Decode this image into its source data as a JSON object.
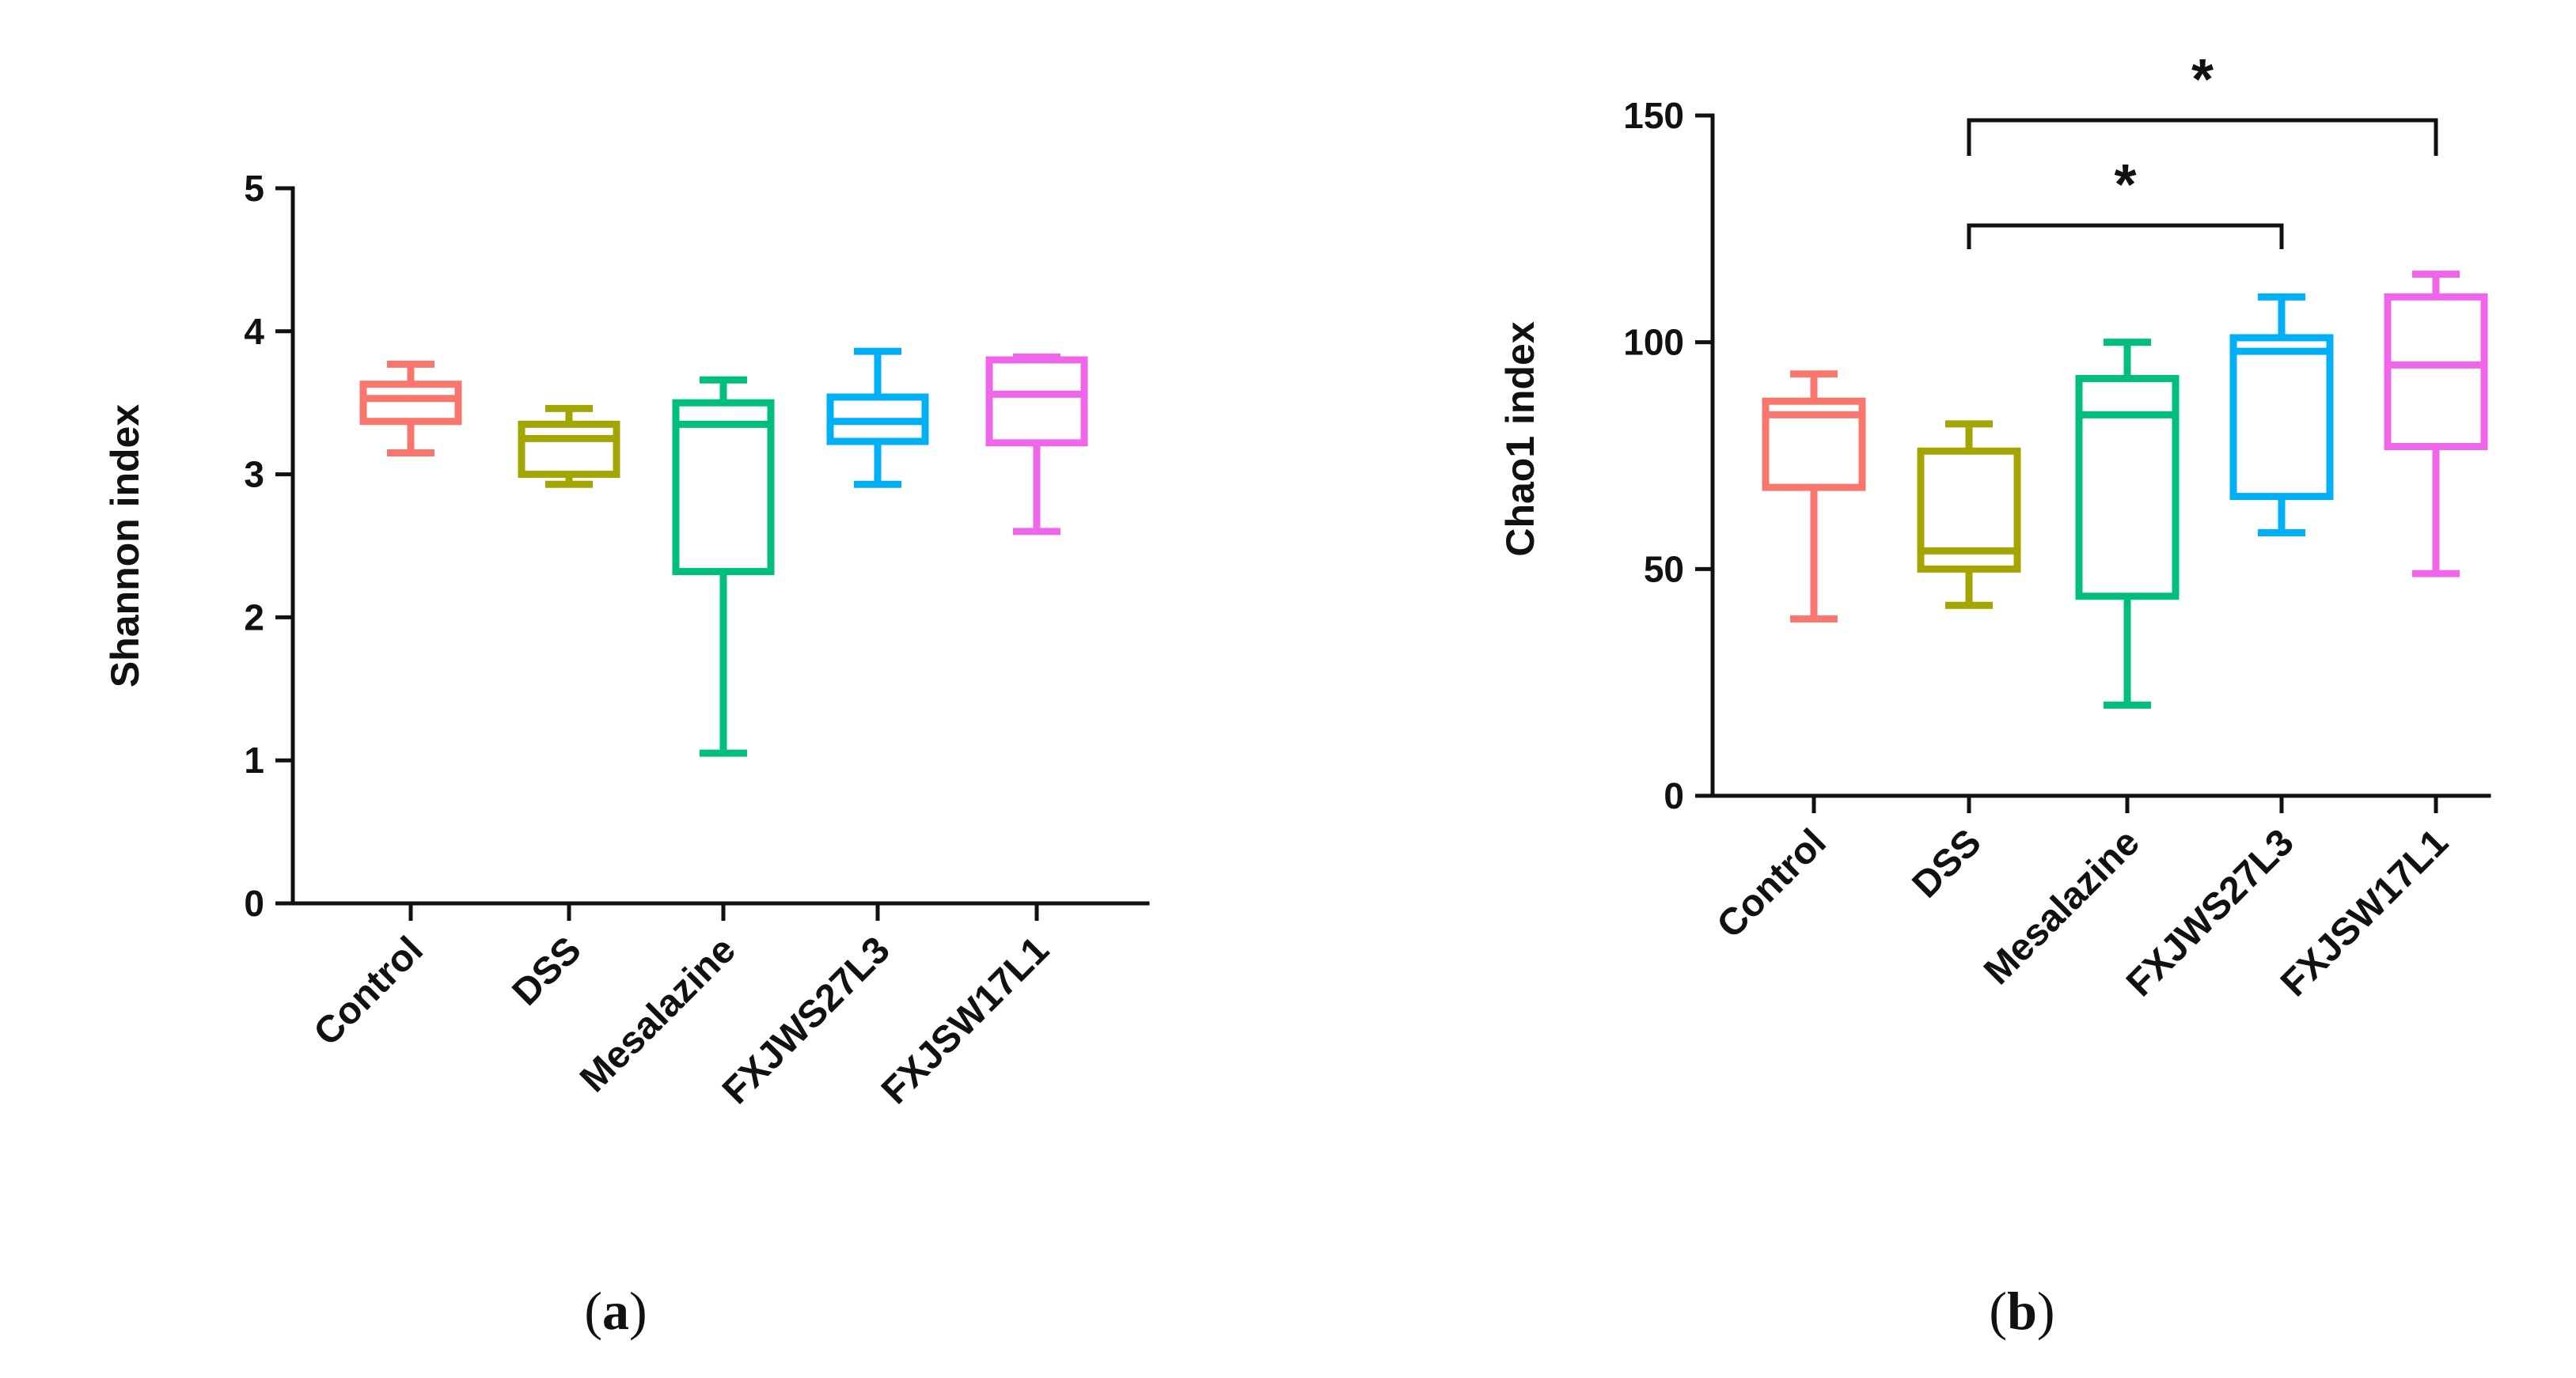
{
  "chart_data": [
    {
      "type": "boxplot",
      "panel_label": "a",
      "title": "",
      "xlabel": "",
      "ylabel": "Shannon index",
      "ylim": [
        0,
        5
      ],
      "yticks": [
        0,
        1,
        2,
        3,
        4,
        5
      ],
      "categories": [
        "Control",
        "DSS",
        "Mesalazine",
        "FXJWS27L3",
        "FXJSW17L1"
      ],
      "colors": [
        "#f8766d",
        "#a3a500",
        "#00bf7d",
        "#00b0f6",
        "#f066ea"
      ],
      "boxes": [
        {
          "min": 3.15,
          "q1": 3.37,
          "median": 3.53,
          "q3": 3.63,
          "max": 3.77
        },
        {
          "min": 2.93,
          "q1": 3.0,
          "median": 3.25,
          "q3": 3.35,
          "max": 3.46
        },
        {
          "min": 1.05,
          "q1": 2.32,
          "median": 3.35,
          "q3": 3.5,
          "max": 3.66
        },
        {
          "min": 2.93,
          "q1": 3.23,
          "median": 3.37,
          "q3": 3.54,
          "max": 3.86
        },
        {
          "min": 2.6,
          "q1": 3.22,
          "median": 3.56,
          "q3": 3.8,
          "max": 3.82
        }
      ],
      "significance": []
    },
    {
      "type": "boxplot",
      "panel_label": "b",
      "title": "",
      "xlabel": "",
      "ylabel": "Chao1 index",
      "ylim": [
        0,
        150
      ],
      "yticks": [
        0,
        50,
        100,
        150
      ],
      "categories": [
        "Control",
        "DSS",
        "Mesalazine",
        "FXJWS27L3",
        "FXJSW17L1"
      ],
      "colors": [
        "#f8766d",
        "#a3a500",
        "#00bf7d",
        "#00b0f6",
        "#f066ea"
      ],
      "boxes": [
        {
          "min": 39,
          "q1": 68,
          "median": 84,
          "q3": 87,
          "max": 93
        },
        {
          "min": 42,
          "q1": 50,
          "median": 54,
          "q3": 76,
          "max": 82
        },
        {
          "min": 20,
          "q1": 44,
          "median": 84,
          "q3": 92,
          "max": 100
        },
        {
          "min": 58,
          "q1": 66,
          "median": 98,
          "q3": 101,
          "max": 110
        },
        {
          "min": 49,
          "q1": 77,
          "median": 95,
          "q3": 110,
          "max": 115
        }
      ],
      "significance": [
        {
          "from": "DSS",
          "to": "FXJWS27L3",
          "label": "*"
        },
        {
          "from": "DSS",
          "to": "FXJSW17L1",
          "label": "*"
        }
      ]
    }
  ]
}
